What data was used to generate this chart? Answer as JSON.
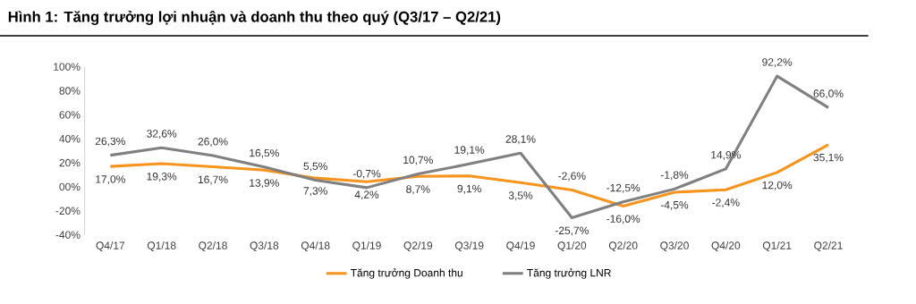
{
  "chart_data": {
    "type": "line",
    "title": "Hình 1: Tăng trưởng lợi nhuận và doanh thu theo quý (Q3/17 – Q2/21)",
    "categories": [
      "Q4/17",
      "Q1/18",
      "Q2/18",
      "Q3/18",
      "Q4/18",
      "Q1/19",
      "Q2/19",
      "Q3/19",
      "Q4/19",
      "Q1/20",
      "Q2/20",
      "Q3/20",
      "Q4/20",
      "Q1/21",
      "Q2/21"
    ],
    "series": [
      {
        "name": "Tăng trưởng Doanh thu",
        "color": "#f7941d",
        "values": [
          17.0,
          19.3,
          16.7,
          13.9,
          7.3,
          4.2,
          8.7,
          9.1,
          3.5,
          -2.6,
          -16.0,
          -4.5,
          -2.4,
          12.0,
          35.1
        ],
        "value_labels": [
          "17,0%",
          "19,3%",
          "16,7%",
          "13,9%",
          "7,3%",
          "4,2%",
          "8,7%",
          "9,1%",
          "3,5%",
          "-2,6%",
          "-16,0%",
          "-4,5%",
          "-2,4%",
          "12,0%",
          "35,1%"
        ]
      },
      {
        "name": "Tăng trưởng LNR",
        "color": "#808080",
        "values": [
          26.3,
          32.6,
          26.0,
          16.5,
          5.5,
          -0.7,
          10.7,
          19.1,
          28.1,
          -25.7,
          -12.5,
          -1.8,
          14.9,
          92.2,
          66.0
        ],
        "value_labels": [
          "26,3%",
          "32,6%",
          "26,0%",
          "16,5%",
          "5,5%",
          "-0,7%",
          "10,7%",
          "19,1%",
          "28,1%",
          "-25,7%",
          "-12,5%",
          "-1,8%",
          "14,9%",
          "92,2%",
          "66,0%"
        ]
      }
    ],
    "ylim": [
      -40,
      100
    ],
    "yticks": [
      {
        "value": -40,
        "label": "-40%"
      },
      {
        "value": -20,
        "label": "-20%"
      },
      {
        "value": 0,
        "label": "00%"
      },
      {
        "value": 20,
        "label": "20%"
      },
      {
        "value": 40,
        "label": "40%"
      },
      {
        "value": 60,
        "label": "60%"
      },
      {
        "value": 80,
        "label": "80%"
      },
      {
        "value": 100,
        "label": "100%"
      }
    ],
    "legend": "bottom",
    "marker": "none",
    "line_style": "solid",
    "grid": false
  }
}
